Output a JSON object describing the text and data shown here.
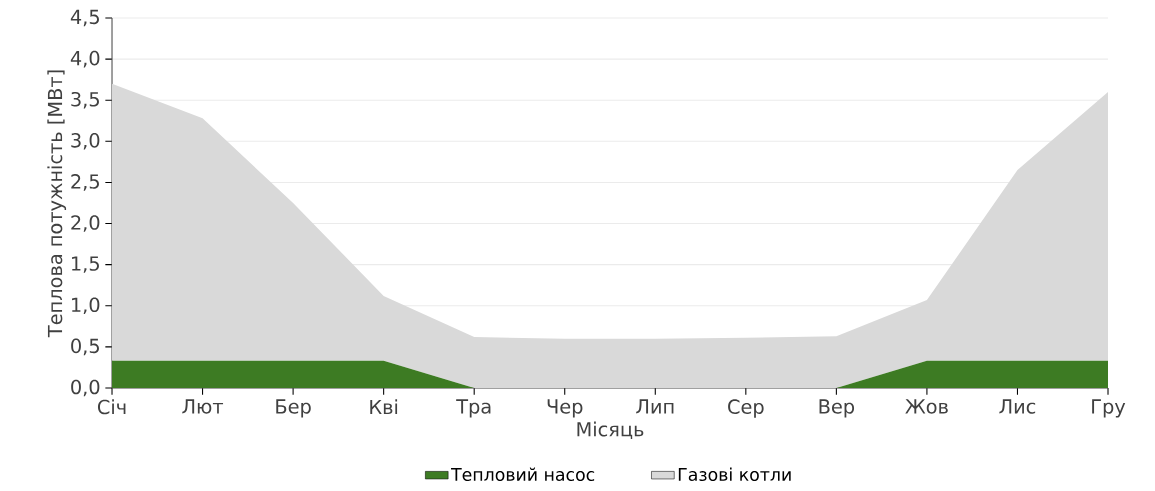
{
  "chart_data": {
    "type": "area",
    "stacked": true,
    "xlabel": "Місяць",
    "ylabel": "Теплова потужність [МВт]",
    "categories": [
      "Січ",
      "Лют",
      "Бер",
      "Кві",
      "Тра",
      "Чер",
      "Лип",
      "Сер",
      "Вер",
      "Жов",
      "Лис",
      "Гру"
    ],
    "series": [
      {
        "name": "Тепловий насос",
        "color": "#3d7b23",
        "values": [
          0.33,
          0.33,
          0.33,
          0.33,
          0,
          0,
          0,
          0,
          0,
          0.33,
          0.33,
          0.33
        ]
      },
      {
        "name": "Газові котли",
        "color": "#d9d9d9",
        "values": [
          3.37,
          2.95,
          1.92,
          0.79,
          0.62,
          0.6,
          0.6,
          0.61,
          0.63,
          0.74,
          2.32,
          3.27
        ]
      }
    ],
    "ylim": [
      0,
      4.5
    ],
    "yticks": [
      {
        "value": 0,
        "label": "0,0"
      },
      {
        "value": 0.5,
        "label": "0,5"
      },
      {
        "value": 1,
        "label": "1,0"
      },
      {
        "value": 1.5,
        "label": "1,5"
      },
      {
        "value": 2,
        "label": "2,0"
      },
      {
        "value": 2.5,
        "label": "2,5"
      },
      {
        "value": 3,
        "label": "3,0"
      },
      {
        "value": 3.5,
        "label": "3,5"
      },
      {
        "value": 4,
        "label": "4,0"
      },
      {
        "value": 4.5,
        "label": "4,5"
      }
    ],
    "grid": "y",
    "legend": "bottom"
  }
}
